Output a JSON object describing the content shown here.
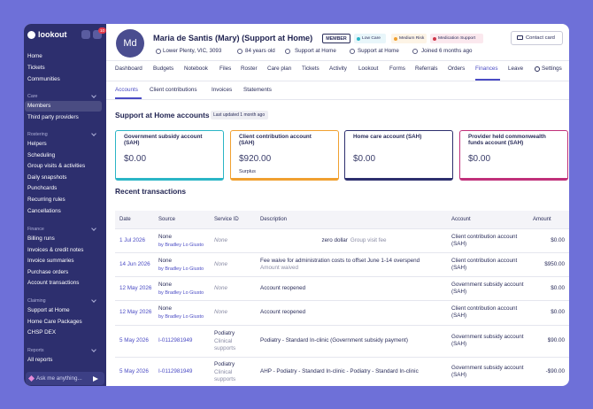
{
  "sidebar": {
    "brand": "lookout",
    "badge": "10",
    "top": [
      "Home",
      "Tickets",
      "Communities"
    ],
    "sections": [
      {
        "title": "Care",
        "items": [
          "Members",
          "Third party providers"
        ]
      },
      {
        "title": "Rostering",
        "items": [
          "Helpers",
          "Scheduling",
          "Group visits & activities",
          "Daily snapshots",
          "Punchcards",
          "Recurring rules",
          "Cancellations"
        ]
      },
      {
        "title": "Finance",
        "items": [
          "Billing runs",
          "Invoices & credit notes",
          "Invoice summaries",
          "Purchase orders",
          "Account transactions"
        ]
      },
      {
        "title": "Claiming",
        "items": [
          "Support at Home",
          "Home Care Packages",
          "CHSP DEX"
        ]
      },
      {
        "title": "Reports",
        "items": [
          "All reports"
        ]
      }
    ],
    "ask": "Ask me anything..."
  },
  "header": {
    "initials": "Md",
    "name": "Maria de Santis (Mary) (Support at Home)",
    "member": "MEMBER",
    "tags": [
      "Low Care",
      "Medium Risk",
      "Medication Support"
    ],
    "contact": "Contact card",
    "details": [
      "Lower Plenty, VIC, 3093",
      "84 years old",
      "Support at Home",
      "Support at Home",
      "Joined 6 months ago"
    ]
  },
  "tabs": [
    "Dashboard",
    "Budgets",
    "Notebook",
    "Files",
    "Roster",
    "Care plan",
    "Tickets",
    "Activity",
    "Lookout",
    "Forms",
    "Referrals",
    "Orders",
    "Finances",
    "Leave",
    "Settings"
  ],
  "subtabs": [
    "Accounts",
    "Client contributions",
    "Invoices",
    "Statements"
  ],
  "accounts": {
    "title": "Support at Home accounts",
    "updated": "Last updated 1 month ago",
    "cards": [
      {
        "title": "Government subsidy account (SAH)",
        "value": "$0.00"
      },
      {
        "title": "Client contribution account (SAH)",
        "value": "$920.00",
        "note": "Surplus"
      },
      {
        "title": "Home care account (SAH)",
        "value": "$0.00"
      },
      {
        "title": "Provider held commonwealth funds account (SAH)",
        "value": "$0.00"
      }
    ]
  },
  "transactions": {
    "title": "Recent transactions",
    "columns": [
      "Date",
      "Source",
      "Service ID",
      "Description",
      "Account",
      "Amount"
    ],
    "rows": [
      {
        "date": "1 Jul 2026",
        "source": "None",
        "by": "by Bradley Lo Giusto",
        "service": "None",
        "description": "zero dollar",
        "description_sub": "Group visit fee",
        "account": "Client contribution account (SAH)",
        "amount": "$0.00"
      },
      {
        "date": "14 Jun 2026",
        "source": "None",
        "by": "by Bradley Lo Giusto",
        "service": "None",
        "description": "Fee waive for administration costs to offset June 1-14 overspend",
        "description_sub": "Amount waived",
        "account": "Client contribution account (SAH)",
        "amount": "$950.00"
      },
      {
        "date": "12 May 2026",
        "source": "None",
        "by": "by Bradley Lo Giusto",
        "service": "None",
        "description": "Account reopened",
        "account": "Government subsidy account (SAH)",
        "amount": "$0.00"
      },
      {
        "date": "12 May 2026",
        "source": "None",
        "by": "by Bradley Lo Giusto",
        "service": "None",
        "description": "Account reopened",
        "account": "Client contribution account (SAH)",
        "amount": "$0.00"
      },
      {
        "date": "5 May 2026",
        "source": "I-0112981949",
        "service": "Podiatry",
        "service_sub": "Clinical supports",
        "description": "Podiatry - Standard In-clinic (Government subsidy payment)",
        "account": "Government subsidy account (SAH)",
        "amount": "$90.00"
      },
      {
        "date": "5 May 2026",
        "source": "I-0112981949",
        "service": "Podiatry",
        "service_sub": "Clinical supports",
        "description": "AHP - Podiatry - Standard In-clinic - Podiatry - Standard In-clinic",
        "account": "Government subsidy account (SAH)",
        "amount": "-$90.00"
      }
    ]
  }
}
